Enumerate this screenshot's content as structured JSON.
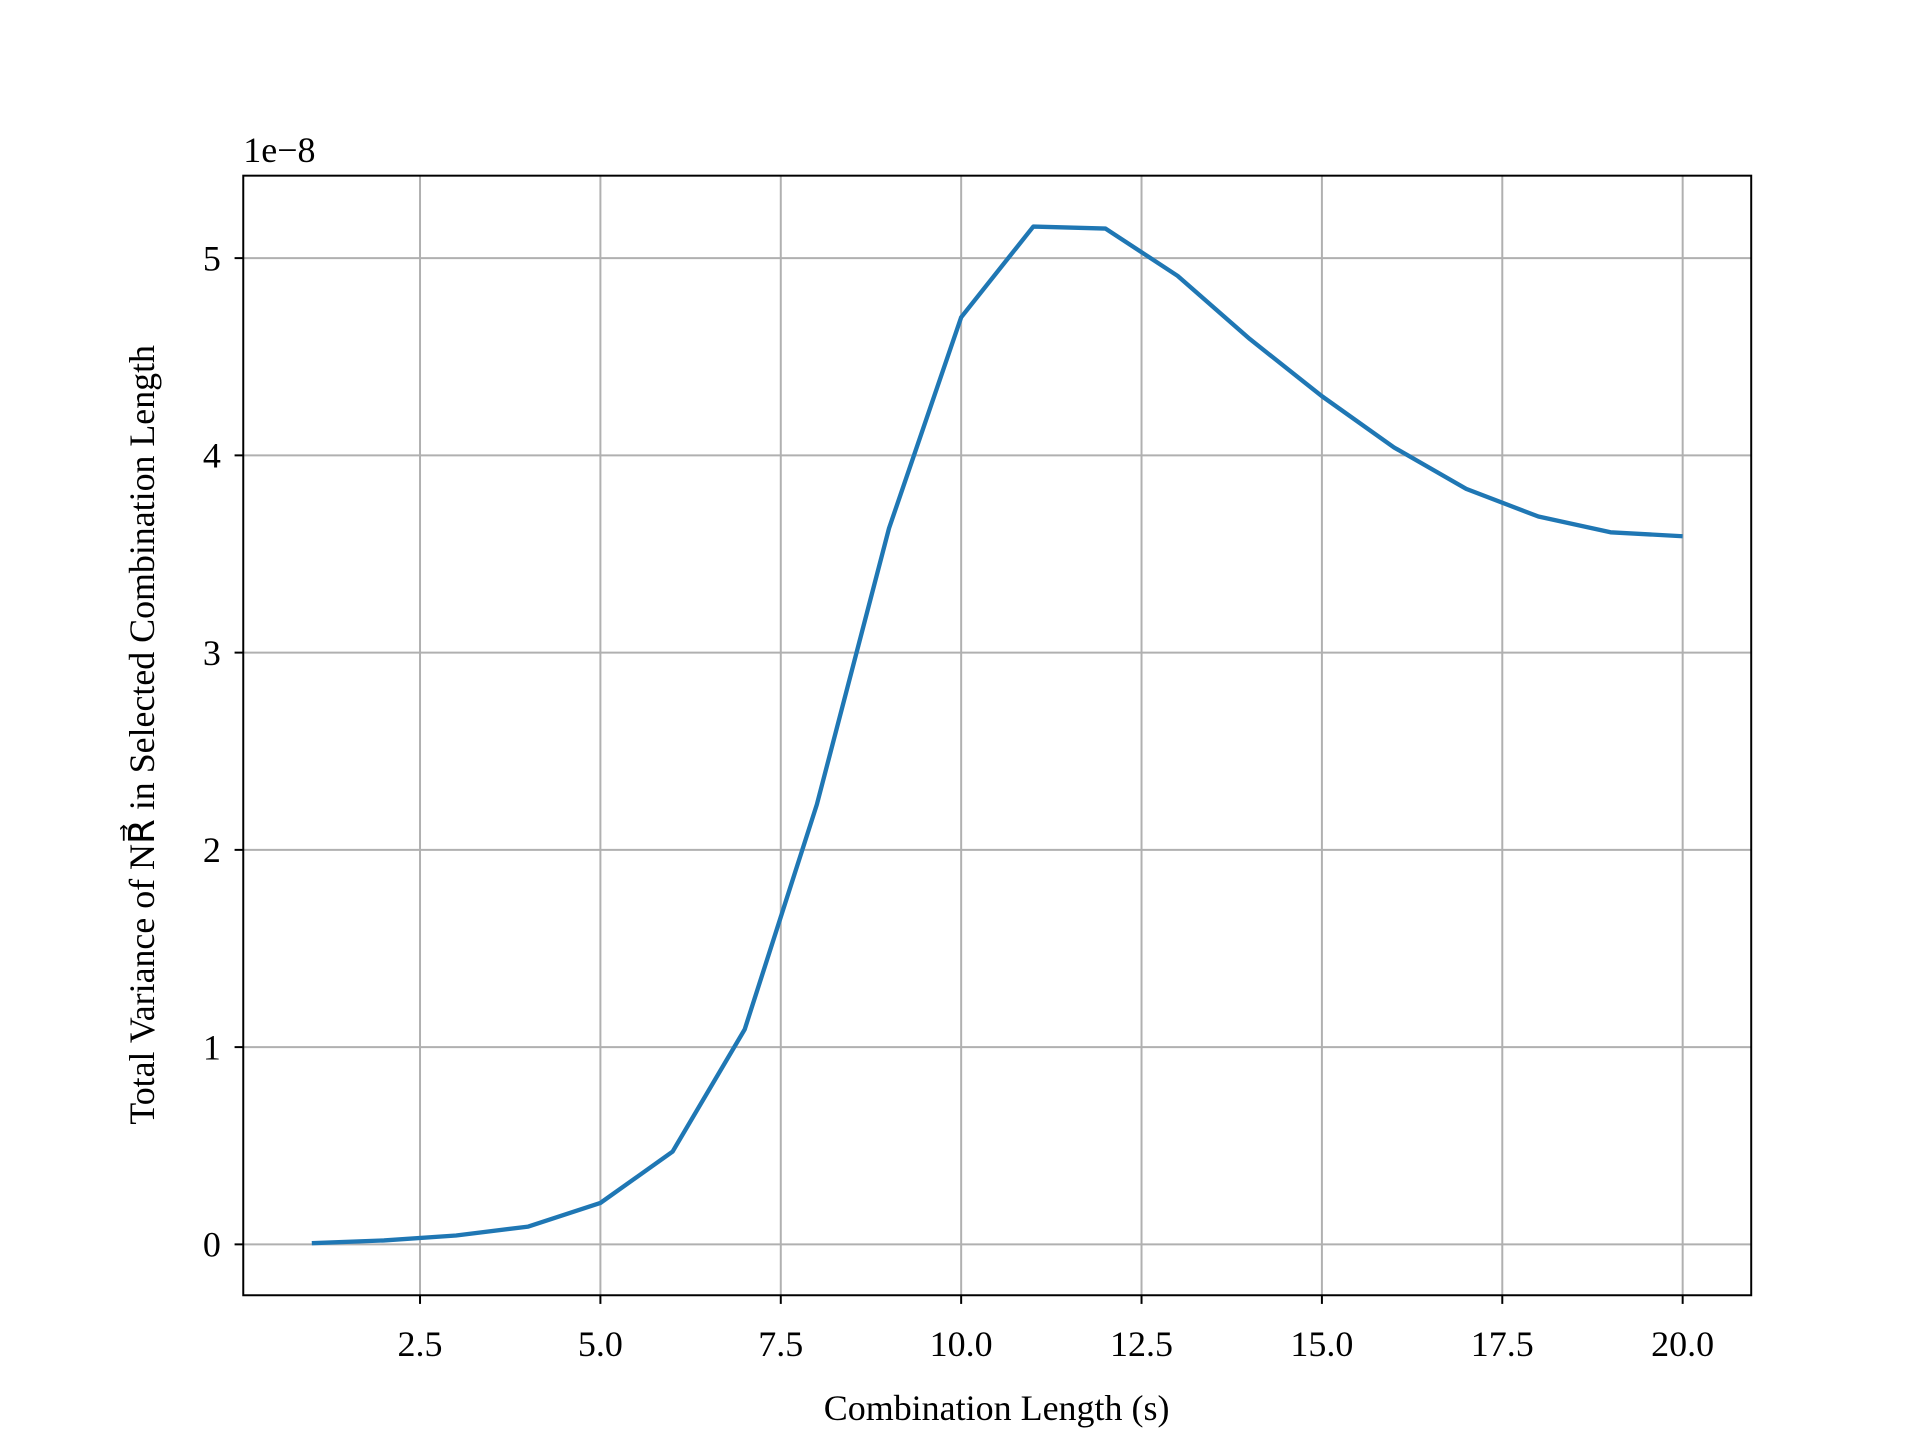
{
  "chart_data": {
    "type": "line",
    "x_label": "Combination Length (s)",
    "y_label": "Total Variance of NR⃗ in Selected Combination Length",
    "offset_label": "1e−8",
    "x": [
      1,
      2,
      3,
      4,
      5,
      6,
      7,
      8,
      9,
      10,
      11,
      12,
      13,
      14,
      15,
      16,
      17,
      18,
      19,
      20
    ],
    "series": [
      {
        "color": "#1f77b4",
        "values": [
          0.006,
          0.02,
          0.045,
          0.09,
          0.21,
          0.47,
          1.09,
          2.23,
          3.63,
          4.7,
          5.16,
          5.15,
          4.91,
          4.59,
          4.3,
          4.04,
          3.83,
          3.69,
          3.61,
          3.59
        ]
      }
    ],
    "xlim": [
      0.05,
      20.95
    ],
    "ylim": [
      -0.258,
      5.418
    ],
    "xticks": [
      2.5,
      {
        "value": 5,
        "label": "5.0"
      },
      7.5,
      {
        "value": 10,
        "label": "10.0"
      },
      12.5,
      {
        "value": 15,
        "label": "15.0"
      },
      17.5,
      {
        "value": 20,
        "label": "20.0"
      }
    ],
    "yticks": [
      0,
      1,
      2,
      3,
      4,
      5
    ],
    "grid": true
  }
}
